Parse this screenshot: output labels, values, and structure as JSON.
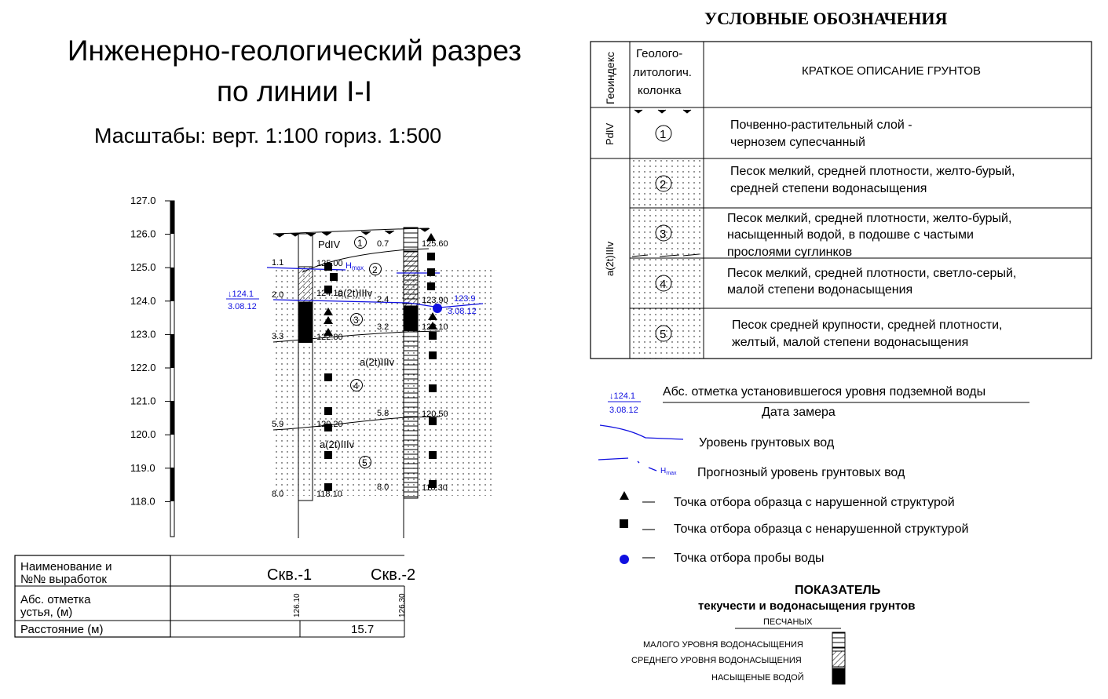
{
  "title": {
    "line1": "Инженерно-геологический разрез",
    "line2": "по линии I-I"
  },
  "scale_text": "Масштабы: верт. 1:100  гориз. 1:500",
  "elevation_ticks": [
    "127.0",
    "126.0",
    "125.0",
    "124.0",
    "123.0",
    "122.0",
    "121.0",
    "120.0",
    "119.0",
    "118.0"
  ],
  "section": {
    "layer_labels": {
      "pdiv": "PdIV",
      "a2t_upper": "a(2t)IIIv",
      "a2t_mid": "a(2t)IIIv",
      "a2t_lower": "a(2t)IIIv",
      "hmax": "H",
      "hmax_sub": "max"
    },
    "layer_numbers": [
      "1",
      "2",
      "3",
      "4",
      "5"
    ],
    "left_depths": [
      "1.1",
      "2.0",
      "3.3",
      "5.9",
      "8.0"
    ],
    "bh1_marks": [
      "125.00",
      "124.10",
      "122.80",
      "120.20",
      "118.10"
    ],
    "bh2_left_depths": [
      "0.7",
      "2.4",
      "3.2",
      "5.8",
      "8.0"
    ],
    "bh2_marks": [
      "125.60",
      "123.90",
      "123.10",
      "120.50",
      "118.30"
    ],
    "gw1": {
      "level": "124.1",
      "date": "3.08.12"
    },
    "gw2": {
      "level": "123.9",
      "date": "3.08.12"
    }
  },
  "bottom_table": {
    "row1_label_a": "Наименование и",
    "row1_label_b": "№№ выработок",
    "bh1_name": "Скв.-1",
    "bh2_name": "Скв.-2",
    "row2_label_a": "Абс. отметка",
    "row2_label_b": "устья, (м)",
    "bh1_elev": "126.10",
    "bh2_elev": "126.30",
    "row3_label": "Расстояние (м)",
    "distance": "15.7"
  },
  "legend": {
    "title": "УСЛОВНЫЕ ОБОЗНАЧЕНИЯ",
    "col1_header": "Геоиндекс",
    "col2_header": [
      "Геолого-",
      "литологич.",
      "колонка"
    ],
    "col3_header": "КРАТКОЕ ОПИСАНИЕ ГРУНТОВ",
    "index_pdiv": "PdIV",
    "index_a2t": "a(2t)IIIv",
    "rows": [
      {
        "num": "1",
        "lines": [
          "Почвенно-растительный слой -",
          "чернозем супесчанный"
        ]
      },
      {
        "num": "2",
        "lines": [
          "Песок мелкий, средней плотности, желто-бурый,",
          "средней степени водонасыщения"
        ]
      },
      {
        "num": "3",
        "lines": [
          "Песок мелкий, средней плотности, желто-бурый,",
          "насыщенный водой, в подошве с частыми",
          "прослоями суглинков"
        ]
      },
      {
        "num": "4",
        "lines": [
          "Песок мелкий, средней плотности, светло-серый,",
          "малой степени водонасыщения"
        ]
      },
      {
        "num": "5",
        "lines": [
          "Песок средней крупности, средней плотности,",
          "желтый, малой степени водонасыщения"
        ]
      }
    ],
    "gw_sample": {
      "level": "124.1",
      "date": "3.08.12"
    },
    "gw_label": "Абс. отметка установившегося уровня подземной воды",
    "gw_date_label": "Дата замера",
    "groundwater_level": "Уровень грунтовых вод",
    "forecast_hmax": "H",
    "forecast_hmax_sub": "max",
    "forecast_level": "Прогнозный уровень грунтовых вод",
    "triangle_item": "Точка отбора образца с нарушенной структурой",
    "square_item": "Точка отбора образца с ненарушенной структурой",
    "circle_item": "Точка отбора пробы воды",
    "dash": "—",
    "indicator_title": "ПОКАЗАТЕЛЬ",
    "indicator_subtitle": "текучести и водонасыщения грунтов",
    "sandy": "ПЕСЧАНЫХ",
    "sat_low": "МАЛОГО УРОВНЯ ВОДОНАСЫЩЕНИЯ",
    "sat_mid": "СРЕДНЕГО УРОВНЯ ВОДОНАСЫЩЕНИЯ",
    "sat_full": "НАСЫЩЕНЫЕ   ВОДОЙ"
  },
  "colors": {
    "water": "#1010e0",
    "ink": "#000000"
  }
}
